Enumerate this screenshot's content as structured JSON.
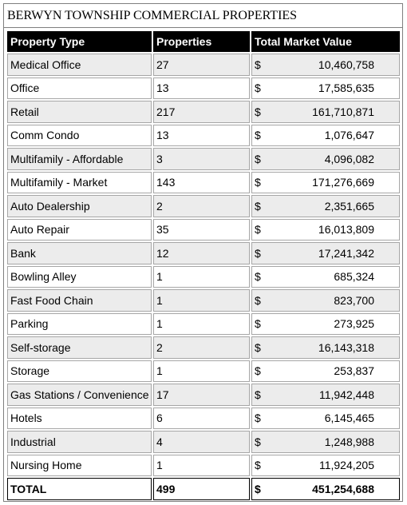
{
  "title": "BERWYN TOWNSHIP COMMERCIAL PROPERTIES",
  "headers": {
    "type": "Property Type",
    "count": "Properties",
    "value": "Total Market Value"
  },
  "currency_symbol": "$",
  "rows": [
    {
      "type": "Medical Office",
      "count": "27",
      "value": "10,460,758"
    },
    {
      "type": "Office",
      "count": "13",
      "value": "17,585,635"
    },
    {
      "type": "Retail",
      "count": "217",
      "value": "161,710,871"
    },
    {
      "type": "Comm Condo",
      "count": "13",
      "value": "1,076,647"
    },
    {
      "type": "Multifamily - Affordable",
      "count": "3",
      "value": "4,096,082"
    },
    {
      "type": "Multifamily - Market",
      "count": "143",
      "value": "171,276,669"
    },
    {
      "type": "Auto Dealership",
      "count": "2",
      "value": "2,351,665"
    },
    {
      "type": "Auto Repair",
      "count": "35",
      "value": "16,013,809"
    },
    {
      "type": "Bank",
      "count": "12",
      "value": "17,241,342"
    },
    {
      "type": "Bowling Alley",
      "count": "1",
      "value": "685,324"
    },
    {
      "type": "Fast Food Chain",
      "count": "1",
      "value": "823,700"
    },
    {
      "type": "Parking",
      "count": "1",
      "value": "273,925"
    },
    {
      "type": "Self-storage",
      "count": "2",
      "value": "16,143,318"
    },
    {
      "type": "Storage",
      "count": "1",
      "value": "253,837"
    },
    {
      "type": "Gas Stations / Convenience",
      "count": "17",
      "value": "11,942,448"
    },
    {
      "type": "Hotels",
      "count": "6",
      "value": "6,145,465"
    },
    {
      "type": "Industrial",
      "count": "4",
      "value": "1,248,988"
    },
    {
      "type": "Nursing Home",
      "count": "1",
      "value": "11,924,205"
    }
  ],
  "total": {
    "label": "TOTAL",
    "count": "499",
    "value": "451,254,688"
  },
  "colors": {
    "header_bg": "#000000",
    "header_text": "#ffffff",
    "shade_row": "#ececec"
  }
}
